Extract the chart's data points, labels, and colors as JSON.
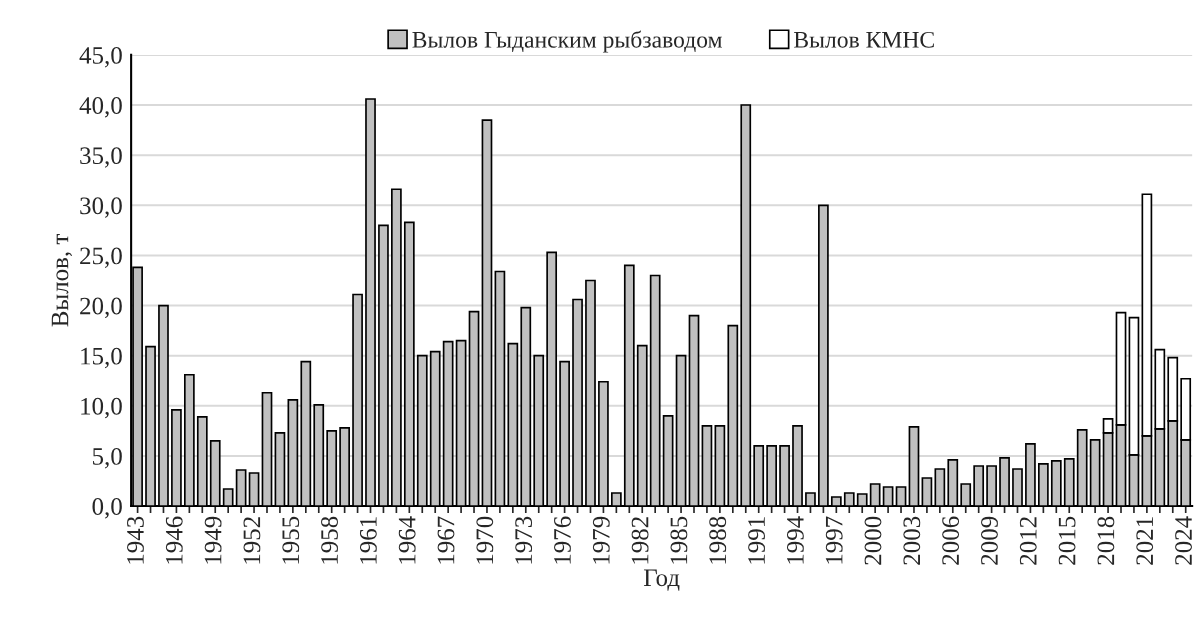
{
  "chart_data": {
    "type": "bar",
    "stacked": true,
    "xlabel": "Год",
    "ylabel": "Вылов, т",
    "categories": [
      "1943",
      null,
      null,
      "1946",
      null,
      null,
      "1949",
      null,
      null,
      "1952",
      null,
      null,
      "1955",
      null,
      null,
      "1958",
      null,
      null,
      "1961",
      null,
      null,
      "1964",
      null,
      null,
      "1967",
      null,
      null,
      "1970",
      null,
      null,
      "1973",
      null,
      null,
      "1976",
      null,
      null,
      "1979",
      null,
      null,
      "1982",
      null,
      null,
      "1985",
      null,
      null,
      "1988",
      null,
      null,
      "1991",
      null,
      null,
      "1994",
      null,
      null,
      "1997",
      null,
      null,
      "2000",
      null,
      null,
      "2003",
      null,
      null,
      "2006",
      null,
      null,
      "2009",
      null,
      null,
      "2012",
      null,
      null,
      "2015",
      null,
      null,
      "2018",
      null,
      null,
      "2021",
      null,
      null,
      "2024"
    ],
    "series": [
      {
        "name": "Вылов Гыданским рыбзаводом",
        "color": "#c0c0c0",
        "values": [
          23.8,
          15.9,
          20.0,
          9.6,
          13.1,
          8.9,
          6.5,
          1.7,
          3.6,
          3.3,
          11.3,
          7.3,
          10.6,
          14.4,
          10.1,
          7.5,
          7.8,
          21.1,
          40.6,
          28.0,
          31.6,
          28.3,
          15.0,
          15.4,
          16.4,
          16.5,
          19.4,
          38.5,
          23.4,
          16.2,
          19.8,
          15.0,
          25.3,
          14.4,
          20.6,
          22.5,
          12.4,
          1.3,
          24.0,
          16.0,
          23.0,
          9.0,
          15.0,
          19.0,
          8.0,
          8.0,
          18.0,
          40.0,
          6.0,
          6.0,
          6.0,
          8.0,
          1.3,
          30.0,
          0.9,
          1.3,
          1.2,
          2.2,
          1.9,
          1.9,
          7.9,
          2.8,
          3.7,
          4.6,
          2.2,
          4.0,
          4.0,
          4.8,
          3.7,
          6.2,
          4.2,
          4.5,
          4.7,
          7.6,
          6.6,
          7.3,
          8.1,
          5.1,
          7.0,
          7.7,
          8.5,
          6.6
        ]
      },
      {
        "name": "Вылов КМНС",
        "color": "#ffffff",
        "values": [
          null,
          null,
          null,
          null,
          null,
          null,
          null,
          null,
          null,
          null,
          null,
          null,
          null,
          null,
          null,
          null,
          null,
          null,
          null,
          null,
          null,
          null,
          null,
          null,
          null,
          null,
          null,
          null,
          null,
          null,
          null,
          null,
          null,
          null,
          null,
          null,
          null,
          null,
          null,
          null,
          null,
          null,
          null,
          null,
          null,
          null,
          null,
          null,
          null,
          null,
          null,
          null,
          null,
          null,
          null,
          null,
          null,
          null,
          null,
          null,
          null,
          null,
          null,
          null,
          null,
          null,
          null,
          null,
          null,
          null,
          null,
          null,
          null,
          null,
          null,
          1.4,
          11.2,
          13.7,
          24.1,
          7.9,
          6.3,
          6.1
        ]
      }
    ],
    "ylim": [
      0,
      45
    ],
    "yticks": [
      {
        "value": 0,
        "label": "0,0"
      },
      {
        "value": 5,
        "label": "5,0"
      },
      {
        "value": 10,
        "label": "10,0"
      },
      {
        "value": 15,
        "label": "15,0"
      },
      {
        "value": 20,
        "label": "20,0"
      },
      {
        "value": 25,
        "label": "25,0"
      },
      {
        "value": 30,
        "label": "30,0"
      },
      {
        "value": 35,
        "label": "35,0"
      },
      {
        "value": 40,
        "label": "40,0"
      },
      {
        "value": 45,
        "label": "45,0"
      }
    ],
    "grid": "y",
    "legend": "top"
  }
}
